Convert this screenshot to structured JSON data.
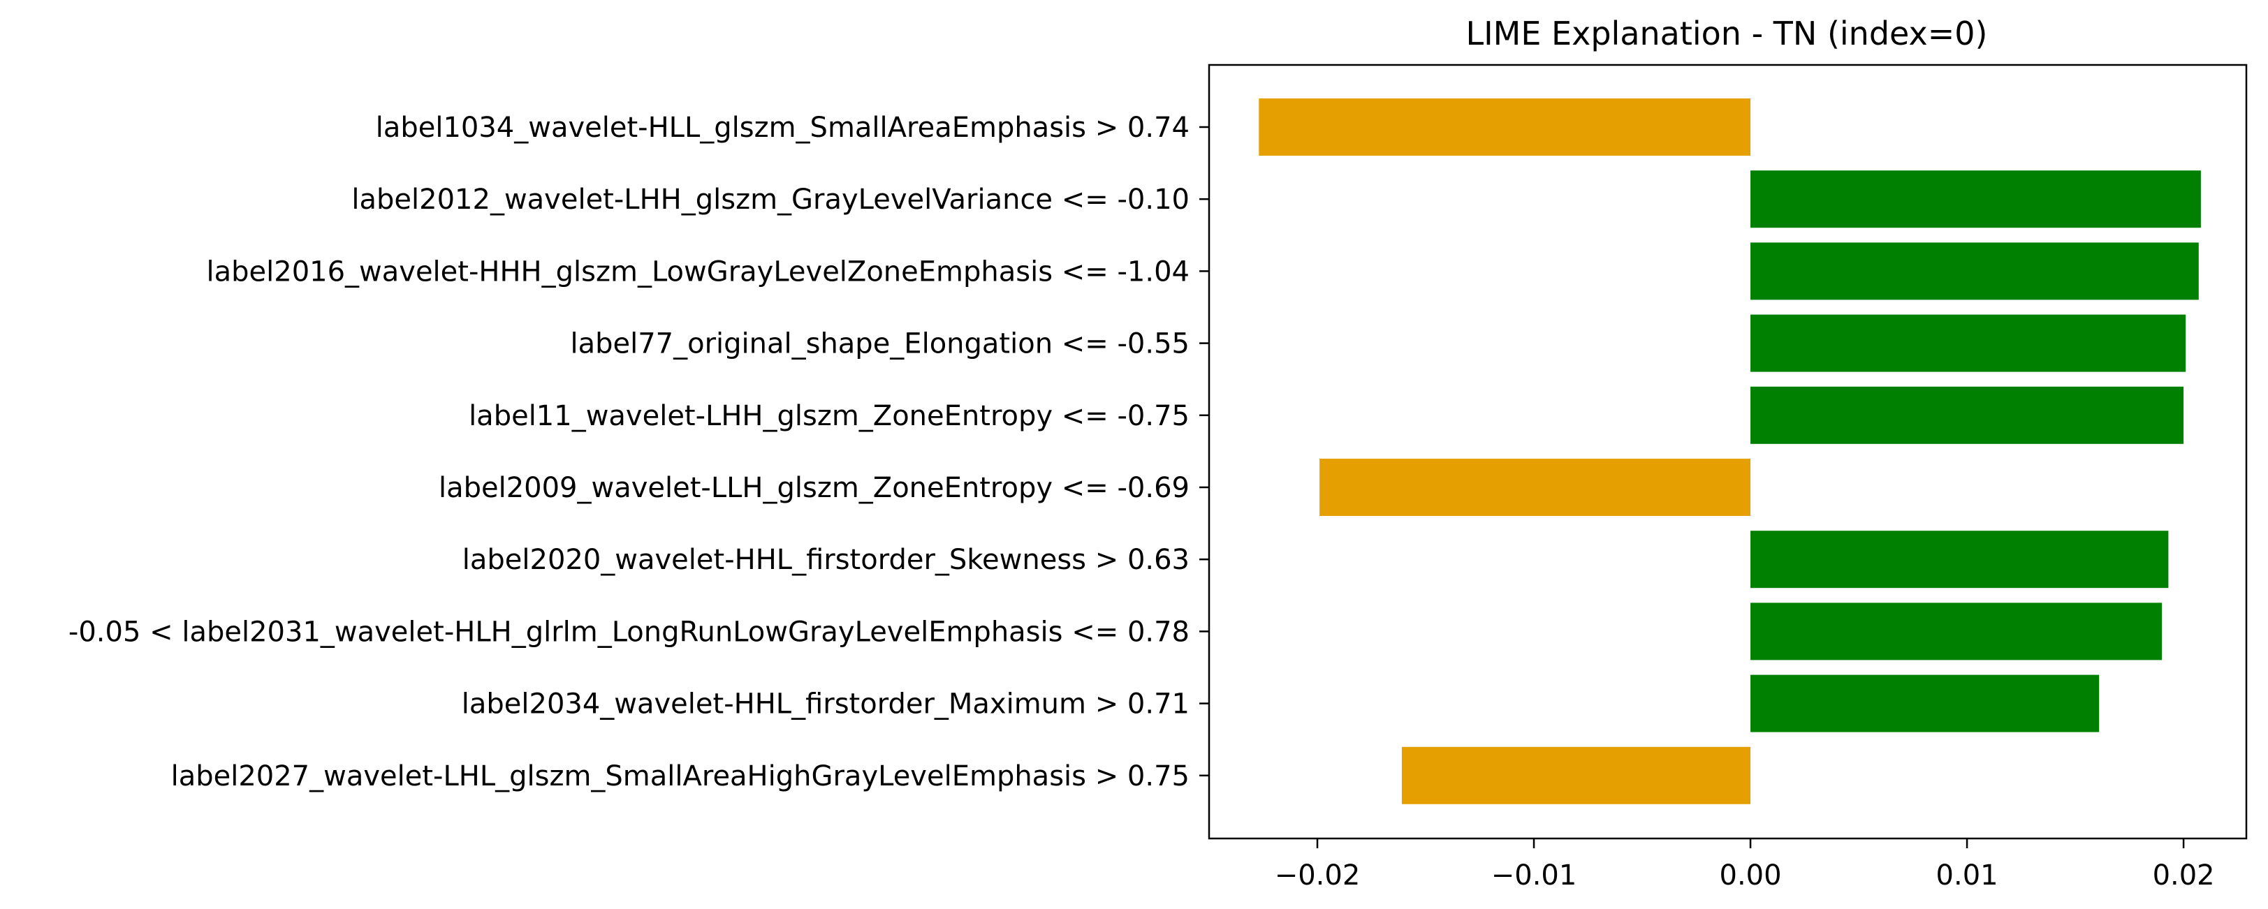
{
  "chart_data": {
    "type": "bar",
    "orientation": "horizontal",
    "title": "LIME Explanation - TN (index=0)",
    "xlabel": "",
    "ylabel": "",
    "xlim": [
      -0.025,
      0.0229
    ],
    "xticks": [
      -0.02,
      -0.01,
      0.0,
      0.01,
      0.02
    ],
    "xtick_labels": [
      "−0.02",
      "−0.01",
      "0.00",
      "0.01",
      "0.02"
    ],
    "grid": false,
    "legend": "none",
    "colors": {
      "positive": "#008000",
      "negative": "#E69F00"
    },
    "categories": [
      "label1034_wavelet-HLL_glszm_SmallAreaEmphasis > 0.74",
      "label2012_wavelet-LHH_glszm_GrayLevelVariance <= -0.10",
      "label2016_wavelet-HHH_glszm_LowGrayLevelZoneEmphasis <= -1.04",
      "label77_original_shape_Elongation <= -0.55",
      "label11_wavelet-LHH_glszm_ZoneEntropy <= -0.75",
      "label2009_wavelet-LLH_glszm_ZoneEntropy <= -0.69",
      "label2020_wavelet-HHL_firstorder_Skewness > 0.63",
      "-0.05 < label2031_wavelet-HLH_glrlm_LongRunLowGrayLevelEmphasis <= 0.78",
      "label2034_wavelet-HHL_firstorder_Maximum > 0.71",
      "label2027_wavelet-LHL_glszm_SmallAreaHighGrayLevelEmphasis > 0.75"
    ],
    "values": [
      -0.0227,
      0.0208,
      0.0207,
      0.0201,
      0.02,
      -0.0199,
      0.0193,
      0.019,
      0.0161,
      -0.0161
    ]
  }
}
